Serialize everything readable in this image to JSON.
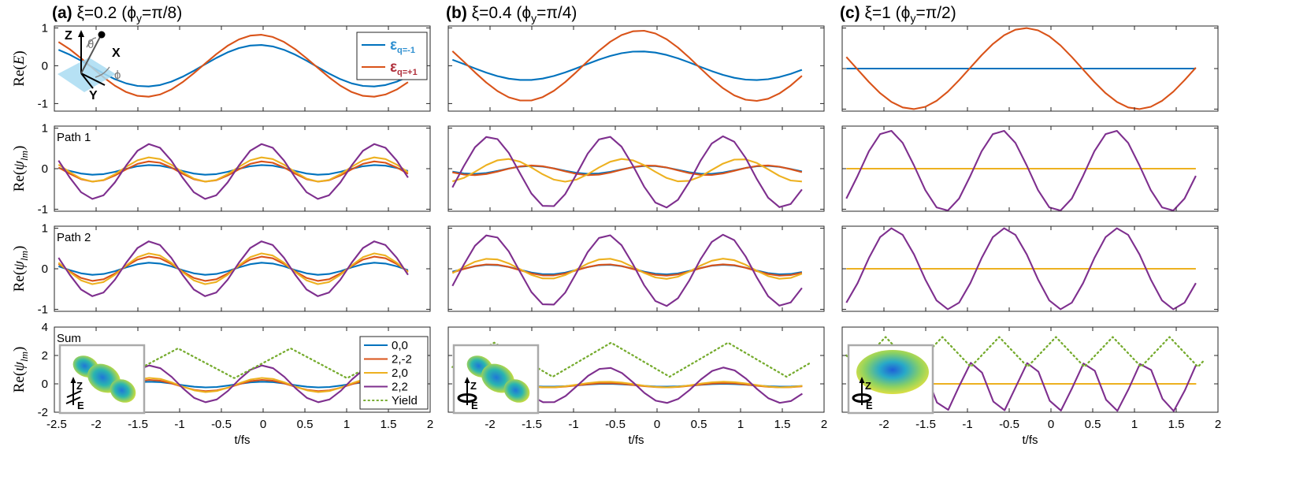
{
  "figure": {
    "columns": [
      {
        "letter": "(a)",
        "title": " ξ=0.2 (ϕ",
        "sub": "y",
        "tail": "=π/8)"
      },
      {
        "letter": "(b)",
        "title": "  ξ=0.4 (ϕ",
        "sub": "y",
        "tail": "=π/4)"
      },
      {
        "letter": "(c)",
        "title": "  ξ=1 (ϕ",
        "sub": "y",
        "tail": "=π/2)"
      }
    ],
    "row_labels": [
      "",
      "Path 1",
      "Path 2",
      "Sum"
    ],
    "y_labels": [
      {
        "text": "Re(",
        "italic": "E",
        "tail": ")"
      },
      {
        "text": "Re(",
        "italic": "ψ",
        "sub": "lm",
        "tail": ")"
      },
      {
        "text": "Re(",
        "italic": "ψ",
        "sub": "lm",
        "tail": ")"
      },
      {
        "text": "Re(",
        "italic": "ψ",
        "sub": "lm",
        "tail": ")"
      }
    ],
    "x_label": "t/fs",
    "inset_axis_labels": {
      "z": "Z",
      "x": "X",
      "y": "Y",
      "theta": "θ",
      "phi": "ϕ"
    },
    "inset_orbital_labels": {
      "z": "Z",
      "e": "E"
    }
  },
  "colors": {
    "s00": "#0072BD",
    "s2m2": "#D95319",
    "s20": "#EDB120",
    "s22": "#7E2F8E",
    "yield": "#77AC30",
    "plane": "#a9dcf2"
  },
  "chart_data": [
    {
      "type": "line",
      "panel": "a-E",
      "ylim": [
        -1.2,
        1.05
      ],
      "yticks": [
        -1,
        0,
        1
      ],
      "xlim_left": -2.5,
      "xlim_right": 2.0,
      "legend": {
        "position": "top-right",
        "entries": [
          {
            "sym": "ε",
            "sub": "q=-1",
            "color": "#0072BD"
          },
          {
            "sym": "ε",
            "sub": "q=+1",
            "color": "#D95319"
          }
        ]
      },
      "series": [
        {
          "key": "s00",
          "kind": "sine",
          "amp": 0.55,
          "period": 2.7,
          "peak": -0.05,
          "x0": -2.45,
          "x1": 1.82
        },
        {
          "key": "s2m2",
          "kind": "sine",
          "amp": 0.82,
          "period": 2.7,
          "peak": -0.05,
          "x0": -2.45,
          "x1": 1.82
        }
      ]
    },
    {
      "type": "line",
      "panel": "a-P1",
      "ylim": [
        -1.05,
        1.05
      ],
      "yticks": [
        -1,
        0,
        1
      ],
      "xlim_left": -2.5,
      "xlim_right": 2.0,
      "series": [
        {
          "key": "s00",
          "kind": "sine",
          "amp": 0.12,
          "offset": -0.03,
          "period": 1.35,
          "peak": 0.0,
          "x0": -2.45,
          "x1": 1.82
        },
        {
          "key": "s2m2",
          "kind": "sine",
          "amp": 0.25,
          "offset": -0.07,
          "period": 1.35,
          "peak": 0.0,
          "x0": -2.45,
          "x1": 1.82
        },
        {
          "key": "s20",
          "kind": "sine",
          "amp": 0.3,
          "offset": -0.02,
          "period": 1.35,
          "peak": 0.0,
          "x0": -2.45,
          "x1": 1.82
        },
        {
          "key": "s22",
          "kind": "sine",
          "amp": 0.68,
          "offset": -0.07,
          "period": 1.35,
          "peak": 0.0,
          "x0": -2.45,
          "x1": 1.82
        }
      ]
    },
    {
      "type": "line",
      "panel": "a-P2",
      "ylim": [
        -1.05,
        1.05
      ],
      "yticks": [
        -1,
        0,
        1
      ],
      "xlim_left": -2.5,
      "xlim_right": 2.0,
      "series": [
        {
          "key": "s00",
          "kind": "sine",
          "amp": 0.15,
          "offset": 0.0,
          "period": 1.35,
          "peak": 0.0,
          "x0": -2.45,
          "x1": 1.82
        },
        {
          "key": "s2m2",
          "kind": "sine",
          "amp": 0.3,
          "offset": 0.0,
          "period": 1.35,
          "peak": 0.0,
          "x0": -2.45,
          "x1": 1.82
        },
        {
          "key": "s20",
          "kind": "sine",
          "amp": 0.38,
          "offset": 0.0,
          "period": 1.35,
          "peak": 0.0,
          "x0": -2.45,
          "x1": 1.82
        },
        {
          "key": "s22",
          "kind": "sine",
          "amp": 0.68,
          "offset": 0.0,
          "period": 1.35,
          "peak": 0.0,
          "x0": -2.45,
          "x1": 1.82
        }
      ]
    },
    {
      "type": "line",
      "panel": "a-S",
      "ylim": [
        -2,
        4
      ],
      "yticks": [
        -2,
        0,
        2,
        4
      ],
      "xlim_left": -2.5,
      "xlim_right": 2.0,
      "xticks": [
        -2.5,
        -2,
        -1.5,
        -1,
        -0.5,
        0,
        0.5,
        1,
        1.5,
        2
      ],
      "legend": {
        "position": "top-right",
        "entries": [
          {
            "label": "0,0",
            "key": "s00"
          },
          {
            "label": "2,-2",
            "key": "s2m2"
          },
          {
            "label": "2,0",
            "key": "s20"
          },
          {
            "label": "2,2",
            "key": "s22"
          },
          {
            "label": "Yield",
            "key": "yield",
            "dotted": true
          }
        ]
      },
      "series": [
        {
          "key": "s00",
          "kind": "sine",
          "amp": 0.2,
          "offset": -0.05,
          "period": 1.35,
          "peak": 0.0,
          "x0": -1.5,
          "x1": 1.82
        },
        {
          "key": "s2m2",
          "kind": "sine",
          "amp": 0.4,
          "offset": -0.12,
          "period": 1.35,
          "peak": 0.0,
          "x0": -1.5,
          "x1": 1.82
        },
        {
          "key": "s20",
          "kind": "sine",
          "amp": 0.5,
          "offset": -0.08,
          "period": 1.35,
          "peak": 0.0,
          "x0": -1.5,
          "x1": 1.82
        },
        {
          "key": "s22",
          "kind": "sine",
          "amp": 1.3,
          "offset": 0.0,
          "period": 1.35,
          "peak": 0.0,
          "x0": -1.5,
          "x1": 1.82
        },
        {
          "key": "yield",
          "kind": "tri",
          "low": 0.4,
          "high": 2.5,
          "period": 1.35,
          "peak": -1.02,
          "x0": -1.5,
          "x1": 1.82
        }
      ]
    },
    {
      "type": "line",
      "panel": "b-E",
      "ylim": [
        -1.2,
        1.05
      ],
      "yticks": [
        -1,
        0,
        1
      ],
      "xlim_left": -2.5,
      "xlim_right": 2.0,
      "series": [
        {
          "key": "s00",
          "kind": "sine",
          "amp": 0.38,
          "period": 2.75,
          "peak": -0.2,
          "x0": -2.45,
          "x1": 1.82
        },
        {
          "key": "s2m2",
          "kind": "sine",
          "amp": 0.93,
          "period": 2.75,
          "peak": -0.2,
          "x0": -2.45,
          "x1": 1.82
        }
      ]
    },
    {
      "type": "line",
      "panel": "b-P1",
      "ylim": [
        -1.05,
        1.05
      ],
      "yticks": [
        -1,
        0,
        1
      ],
      "xlim_left": -2.5,
      "xlim_right": 2.0,
      "series": [
        {
          "key": "s00",
          "kind": "sine",
          "amp": 0.1,
          "offset": -0.03,
          "period": 1.4,
          "peak": -1.5,
          "x0": -2.45,
          "x1": 1.82
        },
        {
          "key": "s2m2",
          "kind": "sine",
          "amp": 0.12,
          "offset": -0.04,
          "period": 1.4,
          "peak": -1.5,
          "x0": -2.45,
          "x1": 1.82
        },
        {
          "key": "s20",
          "kind": "sine",
          "amp": 0.28,
          "offset": -0.04,
          "period": 1.4,
          "peak": -0.4,
          "x0": -2.45,
          "x1": 1.82
        },
        {
          "key": "s22",
          "kind": "sine",
          "amp": 0.88,
          "offset": -0.08,
          "period": 1.4,
          "peak": -0.6,
          "x0": -2.45,
          "x1": 1.82
        }
      ]
    },
    {
      "type": "line",
      "panel": "b-P2",
      "ylim": [
        -1.05,
        1.05
      ],
      "yticks": [
        -1,
        0,
        1
      ],
      "xlim_left": -2.5,
      "xlim_right": 2.0,
      "series": [
        {
          "key": "s00",
          "kind": "sine",
          "amp": 0.12,
          "offset": -0.02,
          "period": 1.4,
          "peak": -0.6,
          "x0": -2.45,
          "x1": 1.82
        },
        {
          "key": "s2m2",
          "kind": "sine",
          "amp": 0.14,
          "offset": -0.03,
          "period": 1.4,
          "peak": -0.6,
          "x0": -2.45,
          "x1": 1.82
        },
        {
          "key": "s20",
          "kind": "sine",
          "amp": 0.25,
          "offset": 0.0,
          "period": 1.4,
          "peak": -0.6,
          "x0": -2.45,
          "x1": 1.82
        },
        {
          "key": "s22",
          "kind": "sine",
          "amp": 0.88,
          "offset": -0.04,
          "period": 1.4,
          "peak": -0.6,
          "x0": -2.45,
          "x1": 1.82
        }
      ]
    },
    {
      "type": "line",
      "panel": "b-S",
      "ylim": [
        -2,
        4
      ],
      "yticks": [
        -2,
        0,
        2,
        4
      ],
      "xlim_left": -2.5,
      "xlim_right": 2.0,
      "xticks": [
        -2,
        -1.5,
        -1,
        -0.5,
        0,
        0.5,
        1,
        1.5,
        2
      ],
      "series": [
        {
          "key": "s00",
          "kind": "sine",
          "amp": 0.1,
          "offset": -0.1,
          "period": 1.4,
          "peak": -0.6,
          "x0": -1.5,
          "x1": 1.82
        },
        {
          "key": "s2m2",
          "kind": "sine",
          "amp": 0.15,
          "offset": -0.1,
          "period": 1.4,
          "peak": -0.6,
          "x0": -1.5,
          "x1": 1.82
        },
        {
          "key": "s20",
          "kind": "sine",
          "amp": 0.2,
          "offset": -0.05,
          "period": 1.4,
          "peak": -0.6,
          "x0": -1.5,
          "x1": 1.82
        },
        {
          "key": "s22",
          "kind": "sine",
          "amp": 1.25,
          "offset": -0.1,
          "period": 1.4,
          "peak": -0.6,
          "x0": -1.5,
          "x1": 1.82
        },
        {
          "key": "yield",
          "kind": "tri",
          "low": 0.5,
          "high": 2.9,
          "period": 1.4,
          "peak": -1.95,
          "x0": -2.45,
          "x1": 1.82
        }
      ]
    },
    {
      "type": "line",
      "panel": "c-E",
      "ylim": [
        -1.05,
        1.05
      ],
      "yticks": [
        -1,
        0,
        1
      ],
      "xlim_left": -2.5,
      "xlim_right": 2.0,
      "series": [
        {
          "key": "s00",
          "kind": "const",
          "value": 0.0,
          "x0": -2.45,
          "x1": 1.82
        },
        {
          "key": "s2m2",
          "kind": "sine",
          "amp": 1.0,
          "period": 2.7,
          "peak": -0.3,
          "x0": -2.45,
          "x1": 1.82
        }
      ]
    },
    {
      "type": "line",
      "panel": "c-P1",
      "ylim": [
        -1.05,
        1.05
      ],
      "yticks": [
        -1,
        0,
        1
      ],
      "xlim_left": -2.5,
      "xlim_right": 2.0,
      "series": [
        {
          "key": "s20",
          "kind": "const",
          "value": 0.0,
          "x0": -2.45,
          "x1": 1.82
        },
        {
          "key": "s22",
          "kind": "sine",
          "amp": 1.0,
          "offset": -0.05,
          "period": 1.35,
          "peak": -0.6,
          "x0": -2.45,
          "x1": 1.82
        }
      ]
    },
    {
      "type": "line",
      "panel": "c-P2",
      "ylim": [
        -1.05,
        1.05
      ],
      "yticks": [
        -1,
        0,
        1
      ],
      "xlim_left": -2.5,
      "xlim_right": 2.0,
      "series": [
        {
          "key": "s20",
          "kind": "const",
          "value": 0.0,
          "x0": -2.45,
          "x1": 1.82
        },
        {
          "key": "s22",
          "kind": "sine",
          "amp": 1.0,
          "offset": 0.0,
          "period": 1.35,
          "peak": -0.55,
          "x0": -2.45,
          "x1": 1.82
        }
      ]
    },
    {
      "type": "line",
      "panel": "c-S",
      "ylim": [
        -2,
        4
      ],
      "yticks": [
        -2,
        0,
        2,
        4
      ],
      "xlim_left": -2.5,
      "xlim_right": 2.0,
      "xticks": [
        -2,
        -1.5,
        -1,
        -0.5,
        0,
        0.5,
        1,
        1.5,
        2
      ],
      "series": [
        {
          "key": "s20",
          "kind": "const",
          "value": 0.0,
          "x0": -1.5,
          "x1": 1.82
        },
        {
          "key": "s22",
          "kind": "sine",
          "amp": 1.75,
          "offset": -0.2,
          "period": 0.68,
          "peak": -0.25,
          "x0": -1.5,
          "x1": 1.82
        },
        {
          "key": "yield",
          "kind": "tri",
          "low": 1.2,
          "high": 3.3,
          "period": 0.68,
          "peak": -1.3,
          "x0": -2.45,
          "x1": 1.82
        }
      ]
    }
  ]
}
